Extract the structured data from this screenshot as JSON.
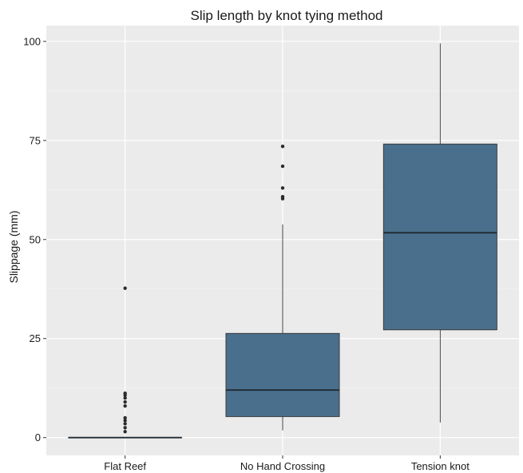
{
  "chart_data": {
    "type": "box",
    "title": "Slip length by knot tying method",
    "xlabel": "",
    "ylabel": "Slippage (mm)",
    "ylim": [
      -4.5,
      104
    ],
    "yticks": [
      0,
      25,
      50,
      75,
      100
    ],
    "grid": true,
    "fill_color": "#4a6f8c",
    "background_color": "#ebebeb",
    "categories": [
      "Flat Reef",
      "No Hand Crossing",
      "Tension knot"
    ],
    "boxes": [
      {
        "category": "Flat Reef",
        "min": 0,
        "q1": 0,
        "median": 0,
        "q3": 0,
        "max": 0,
        "outliers": [
          1.5,
          2.5,
          3.5,
          4.3,
          5.0,
          8.0,
          9.0,
          10.0,
          10.7,
          11.2,
          37.7
        ]
      },
      {
        "category": "No Hand Crossing",
        "min": 1.8,
        "q1": 5.3,
        "median": 12.0,
        "q3": 26.3,
        "max": 53.8,
        "outliers": [
          60.3,
          60.8,
          63.0,
          68.5,
          73.5
        ]
      },
      {
        "category": "Tension knot",
        "min": 3.8,
        "q1": 27.2,
        "median": 51.7,
        "q3": 74.1,
        "max": 99.5,
        "outliers": []
      }
    ]
  }
}
